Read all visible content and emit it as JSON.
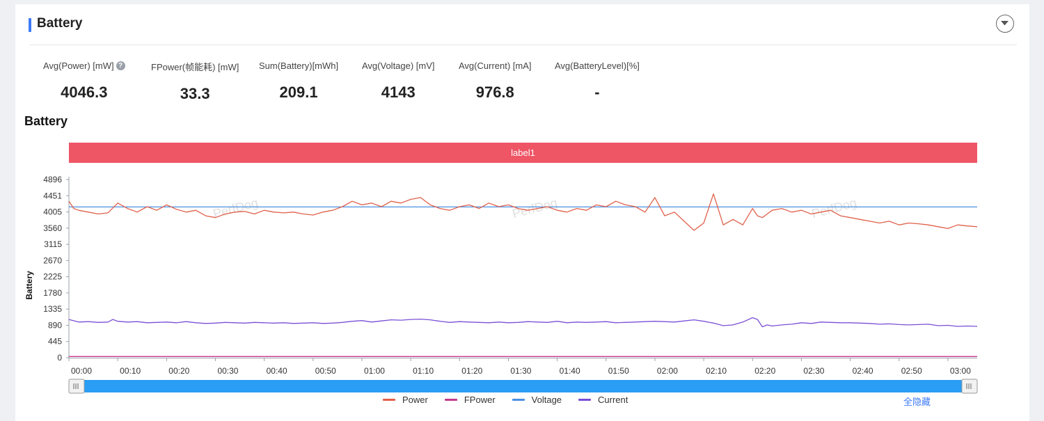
{
  "panel": {
    "title": "Battery"
  },
  "metrics": [
    {
      "label": "Avg(Power) [mW]",
      "value": "4046.3",
      "help": true
    },
    {
      "label": "FPower(帧能耗) [mW]",
      "value": "33.3"
    },
    {
      "label": "Sum(Battery)[mWh]",
      "value": "209.1"
    },
    {
      "label": "Avg(Voltage) [mV]",
      "value": "4143"
    },
    {
      "label": "Avg(Current) [mA]",
      "value": "976.8"
    },
    {
      "label": "Avg(BatteryLevel)[%]",
      "value": "-"
    }
  ],
  "chart_title": "Battery",
  "hide_all_label": "全隐藏",
  "chart_data": {
    "type": "line",
    "title": "Battery",
    "ylabel": "Battery",
    "xlabel": "",
    "ylim": [
      0,
      4896
    ],
    "yticks": [
      0,
      445,
      890,
      1335,
      1780,
      2225,
      2670,
      3115,
      3560,
      4005,
      4451,
      4896
    ],
    "xlim": [
      0,
      186
    ],
    "xticks_sec": [
      0,
      10,
      20,
      30,
      40,
      50,
      60,
      70,
      80,
      90,
      100,
      110,
      120,
      130,
      140,
      150,
      160,
      170,
      180
    ],
    "xtick_labels": [
      "00:00",
      "00:10",
      "00:20",
      "00:30",
      "00:40",
      "00:50",
      "01:00",
      "01:10",
      "01:20",
      "01:30",
      "01:40",
      "01:50",
      "02:00",
      "02:10",
      "02:20",
      "02:30",
      "02:40",
      "02:50",
      "03:00"
    ],
    "band_label": "label1",
    "band_color": "#ee5565",
    "grid": false,
    "legend_position": "bottom",
    "series": [
      {
        "name": "Power",
        "color": "#e0604a",
        "x": [
          0,
          1,
          2,
          4,
          6,
          8,
          10,
          12,
          14,
          16,
          18,
          20,
          22,
          24,
          26,
          28,
          30,
          32,
          34,
          36,
          38,
          40,
          42,
          44,
          46,
          48,
          50,
          52,
          54,
          56,
          58,
          60,
          62,
          64,
          66,
          68,
          70,
          72,
          74,
          76,
          78,
          80,
          82,
          84,
          86,
          88,
          90,
          92,
          94,
          96,
          98,
          100,
          102,
          104,
          106,
          108,
          110,
          112,
          114,
          116,
          118,
          120,
          122,
          124,
          126,
          128,
          129,
          130,
          132,
          134,
          136,
          138,
          140,
          141,
          142,
          143,
          144,
          146,
          148,
          150,
          152,
          154,
          156,
          158,
          160,
          162,
          164,
          166,
          168,
          170,
          172,
          174,
          176,
          178,
          180,
          182,
          184,
          186
        ],
        "y": [
          4300,
          4100,
          4050,
          4000,
          3950,
          3980,
          4250,
          4100,
          4000,
          4150,
          4050,
          4200,
          4080,
          4000,
          4050,
          3900,
          3850,
          3950,
          4000,
          4020,
          3950,
          4050,
          4000,
          3980,
          4000,
          3950,
          3920,
          4000,
          4050,
          4150,
          4300,
          4200,
          4250,
          4150,
          4300,
          4250,
          4350,
          4400,
          4200,
          4100,
          4050,
          4150,
          4200,
          4100,
          4250,
          4150,
          4200,
          4100,
          4050,
          4100,
          4150,
          4050,
          4000,
          4100,
          4050,
          4200,
          4150,
          4300,
          4200,
          4150,
          4000,
          4400,
          3900,
          4000,
          3750,
          3500,
          3600,
          3700,
          4500,
          3650,
          3800,
          3650,
          4100,
          3900,
          3850,
          3950,
          4050,
          4100,
          4000,
          4050,
          3950,
          4000,
          4050,
          3900,
          3850,
          3800,
          3750,
          3700,
          3750,
          3650,
          3700,
          3680,
          3650,
          3600,
          3550,
          3650,
          3620,
          3600
        ]
      },
      {
        "name": "FPower",
        "color": "#c2398f",
        "x": [
          0,
          186
        ],
        "y": [
          33.3,
          33.3
        ]
      },
      {
        "name": "Voltage",
        "color": "#4a90e2",
        "x": [
          0,
          186
        ],
        "y": [
          4143,
          4143
        ]
      },
      {
        "name": "Current",
        "color": "#7a4fd6",
        "x": [
          0,
          2,
          4,
          6,
          8,
          9,
          10,
          12,
          14,
          16,
          18,
          20,
          22,
          24,
          26,
          28,
          30,
          32,
          34,
          36,
          38,
          40,
          42,
          44,
          46,
          48,
          50,
          52,
          54,
          56,
          58,
          60,
          62,
          64,
          66,
          68,
          70,
          72,
          74,
          76,
          78,
          80,
          82,
          84,
          86,
          88,
          90,
          92,
          94,
          96,
          98,
          100,
          102,
          104,
          106,
          108,
          110,
          112,
          114,
          116,
          118,
          120,
          122,
          124,
          126,
          128,
          130,
          132,
          134,
          136,
          138,
          140,
          141,
          142,
          143,
          144,
          146,
          148,
          150,
          152,
          154,
          156,
          158,
          160,
          162,
          164,
          166,
          168,
          170,
          172,
          174,
          176,
          178,
          180,
          182,
          184,
          186
        ],
        "y": [
          1050,
          980,
          990,
          970,
          980,
          1050,
          1000,
          980,
          990,
          960,
          970,
          980,
          960,
          990,
          960,
          940,
          950,
          970,
          960,
          950,
          970,
          960,
          950,
          960,
          940,
          950,
          960,
          940,
          950,
          970,
          1000,
          1020,
          980,
          1010,
          1040,
          1030,
          1050,
          1060,
          1040,
          1000,
          970,
          990,
          980,
          970,
          960,
          980,
          960,
          970,
          990,
          980,
          970,
          1000,
          960,
          980,
          970,
          980,
          990,
          960,
          970,
          980,
          990,
          1000,
          990,
          980,
          1010,
          1040,
          1000,
          950,
          880,
          900,
          980,
          1100,
          1050,
          850,
          900,
          870,
          900,
          920,
          960,
          940,
          980,
          970,
          960,
          960,
          950,
          940,
          920,
          930,
          910,
          900,
          910,
          920,
          880,
          890,
          860,
          870,
          860
        ]
      }
    ]
  }
}
